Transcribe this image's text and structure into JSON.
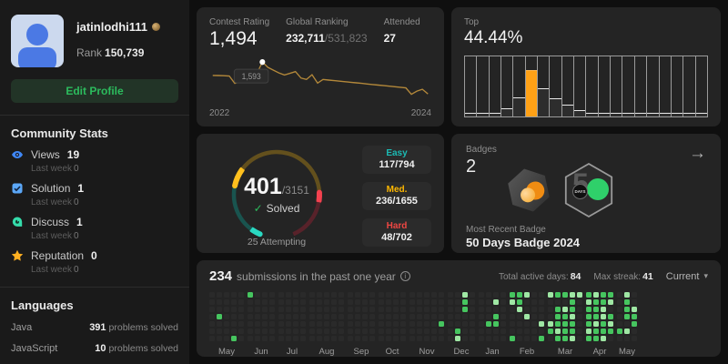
{
  "colors": {
    "accent_green": "#2cbb5d",
    "accent_orange": "#ffa116",
    "line_gold": "#b3883a",
    "easy_teal": "#1cbbb4",
    "medium_yellow": "#ffb800",
    "hard_red": "#ef4743",
    "heat_level1": "#9fe7a4",
    "heat_level2": "#46c55f",
    "heat_empty": "#2a2a2a"
  },
  "icons": {
    "views": "eye-icon",
    "solution": "check-square-icon",
    "discuss": "chat-bubble-icon",
    "reputation": "star-icon",
    "badges_nav": "arrow-right-icon",
    "submissions_info": "info-icon",
    "period_dropdown": "chevron-down-icon",
    "username_badge": "medal-icon"
  },
  "profile": {
    "username": "jatinlodhi111",
    "rank_label": "Rank",
    "rank_value": "150,739",
    "edit_button": "Edit Profile"
  },
  "community_stats": {
    "title": "Community Stats",
    "sub_label": "Last week",
    "items": [
      {
        "label": "Views",
        "value": "19",
        "sub_value": "0",
        "icon": "eye-icon"
      },
      {
        "label": "Solution",
        "value": "1",
        "sub_value": "0",
        "icon": "check-square-icon"
      },
      {
        "label": "Discuss",
        "value": "1",
        "sub_value": "0",
        "icon": "chat-bubble-icon"
      },
      {
        "label": "Reputation",
        "value": "0",
        "sub_value": "0",
        "icon": "star-icon"
      }
    ]
  },
  "languages": {
    "title": "Languages",
    "suffix": "problems solved",
    "items": [
      {
        "name": "Java",
        "count": "391"
      },
      {
        "name": "JavaScript",
        "count": "10"
      }
    ]
  },
  "contest": {
    "rating_label": "Contest Rating",
    "rating_value": "1,494",
    "ranking_label": "Global Ranking",
    "ranking_value": "232,711",
    "ranking_total": "/531,823",
    "attended_label": "Attended",
    "attended_value": "27"
  },
  "top_percent": {
    "label": "Top",
    "value": "44.44%"
  },
  "solved": {
    "count": "401",
    "total": "/3151",
    "solved_label": "Solved",
    "attempting": "25 Attempting",
    "breakdown": [
      {
        "label": "Easy",
        "value": "117/794",
        "color": "#1cbbb4"
      },
      {
        "label": "Med.",
        "value": "236/1655",
        "color": "#ffb800"
      },
      {
        "label": "Hard",
        "value": "48/702",
        "color": "#ef4743"
      }
    ]
  },
  "badges": {
    "label": "Badges",
    "count": "2",
    "hex_number": "5",
    "hex_days": "DAYS",
    "recent_label": "Most Recent Badge",
    "recent_name": "50 Days Badge 2024"
  },
  "submissions": {
    "count": "234",
    "text": "submissions in the past one year",
    "active_label": "Total active days:",
    "active_value": "84",
    "streak_label": "Max streak:",
    "streak_value": "41",
    "dropdown": "Current"
  },
  "chart_data": [
    {
      "type": "line",
      "title": "Contest rating history",
      "xlabel_start": "2022",
      "xlabel_end": "2024",
      "y_range": [
        1340,
        1620
      ],
      "values": [
        1497,
        1496,
        1495,
        1493,
        1440,
        1452,
        1446,
        1470,
        1510,
        1593,
        1555,
        1535,
        1515,
        1500,
        1512,
        1524,
        1478,
        1468,
        1502,
        1442,
        1468,
        1464,
        1460,
        1456,
        1452,
        1448,
        1444,
        1440,
        1436,
        1432,
        1428,
        1424,
        1420,
        1416,
        1412,
        1408,
        1362,
        1385,
        1398,
        1365
      ],
      "peak": {
        "index": 9,
        "value": 1593,
        "label": "1,593"
      },
      "line_color": "#b3883a"
    },
    {
      "type": "bar",
      "title": "Contest rating distribution",
      "values": [
        6,
        6,
        6,
        13,
        32,
        78,
        47,
        30,
        19,
        11,
        6,
        6,
        6,
        6,
        6,
        6,
        6,
        6,
        6,
        6
      ],
      "highlight_index": 5,
      "bar_color": "#2d2d2d",
      "highlight_color": "#ffa116",
      "ylim": [
        0,
        100
      ]
    },
    {
      "type": "heatmap",
      "title": "Submission calendar",
      "rows": 7,
      "level_colors": {
        "0": "#2a2a2a",
        "1": "#9fe7a4",
        "2": "#46c55f"
      },
      "months": [
        {
          "label": "May",
          "weeks": 5,
          "cells": [
            [
              1,
              3,
              2
            ],
            [
              3,
              6,
              2
            ]
          ]
        },
        {
          "label": "Jun",
          "weeks": 4,
          "cells": [
            [
              0,
              0,
              2
            ]
          ]
        },
        {
          "label": "Jul",
          "weeks": 4,
          "cells": []
        },
        {
          "label": "Aug",
          "weeks": 5,
          "cells": []
        },
        {
          "label": "Sep",
          "weeks": 4,
          "cells": []
        },
        {
          "label": "Oct",
          "weeks": 4,
          "cells": []
        },
        {
          "label": "Nov",
          "weeks": 5,
          "cells": [
            [
              4,
              4,
              2
            ]
          ]
        },
        {
          "label": "Dec",
          "weeks": 4,
          "cells": [
            [
              2,
              0,
              1
            ],
            [
              2,
              1,
              2
            ],
            [
              2,
              2,
              2
            ],
            [
              1,
              5,
              2
            ],
            [
              1,
              6,
              1
            ]
          ]
        },
        {
          "label": "Jan",
          "weeks": 4,
          "cells": [
            [
              2,
              1,
              1
            ],
            [
              1,
              4,
              2
            ],
            [
              2,
              3,
              2
            ],
            [
              2,
              4,
              2
            ]
          ]
        },
        {
          "label": "Feb",
          "weeks": 5,
          "cells": [
            [
              0,
              0,
              2
            ],
            [
              1,
              0,
              2
            ],
            [
              2,
              0,
              1
            ],
            [
              0,
              1,
              1
            ],
            [
              1,
              1,
              2
            ],
            [
              1,
              2,
              1
            ],
            [
              2,
              3,
              1
            ],
            [
              0,
              6,
              2
            ],
            [
              4,
              4,
              1
            ],
            [
              4,
              6,
              2
            ]
          ]
        },
        {
          "label": "Mar",
          "weeks": 5,
          "cells": [
            [
              0,
              0,
              1
            ],
            [
              1,
              0,
              2
            ],
            [
              2,
              0,
              2
            ],
            [
              3,
              0,
              1
            ],
            [
              4,
              0,
              1
            ],
            [
              3,
              1,
              2
            ],
            [
              1,
              2,
              2
            ],
            [
              2,
              2,
              1
            ],
            [
              3,
              2,
              2
            ],
            [
              1,
              3,
              2
            ],
            [
              2,
              3,
              2
            ],
            [
              3,
              3,
              1
            ],
            [
              0,
              4,
              1
            ],
            [
              1,
              4,
              2
            ],
            [
              2,
              4,
              2
            ],
            [
              3,
              4,
              2
            ],
            [
              0,
              5,
              2
            ],
            [
              1,
              5,
              1
            ],
            [
              2,
              5,
              2
            ],
            [
              3,
              5,
              2
            ],
            [
              1,
              6,
              2
            ],
            [
              2,
              6,
              2
            ],
            [
              3,
              6,
              1
            ]
          ]
        },
        {
          "label": "Apr",
          "weeks": 4,
          "cells": [
            [
              0,
              0,
              2
            ],
            [
              1,
              0,
              1
            ],
            [
              2,
              0,
              2
            ],
            [
              3,
              0,
              2
            ],
            [
              0,
              1,
              1
            ],
            [
              1,
              1,
              2
            ],
            [
              2,
              1,
              2
            ],
            [
              3,
              1,
              1
            ],
            [
              0,
              2,
              2
            ],
            [
              1,
              2,
              2
            ],
            [
              2,
              2,
              1
            ],
            [
              0,
              3,
              2
            ],
            [
              1,
              3,
              2
            ],
            [
              2,
              3,
              1
            ],
            [
              3,
              3,
              2
            ],
            [
              0,
              4,
              2
            ],
            [
              1,
              4,
              1
            ],
            [
              2,
              4,
              2
            ],
            [
              3,
              4,
              1
            ],
            [
              0,
              5,
              1
            ],
            [
              1,
              5,
              2
            ],
            [
              2,
              5,
              2
            ],
            [
              3,
              5,
              2
            ],
            [
              0,
              6,
              2
            ],
            [
              1,
              6,
              2
            ],
            [
              2,
              6,
              1
            ]
          ]
        },
        {
          "label": "May",
          "weeks": 3,
          "cells": [
            [
              1,
              0,
              1
            ],
            [
              1,
              1,
              2
            ],
            [
              1,
              2,
              2
            ],
            [
              1,
              3,
              2
            ],
            [
              2,
              2,
              1
            ],
            [
              2,
              3,
              2
            ],
            [
              2,
              4,
              2
            ],
            [
              0,
              5,
              2
            ],
            [
              1,
              5,
              1
            ]
          ]
        }
      ]
    },
    {
      "type": "donut",
      "title": "Problems solved",
      "solved": 401,
      "total": 3151,
      "attempting": 25,
      "segments": [
        {
          "name": "Easy",
          "solved": 117,
          "total": 794,
          "bright": "#2ad9c2",
          "dim": "#19544f"
        },
        {
          "name": "Med.",
          "solved": 236,
          "total": 1655,
          "bright": "#ffc01e",
          "dim": "#63501d"
        },
        {
          "name": "Hard",
          "solved": 48,
          "total": 702,
          "bright": "#f3414f",
          "dim": "#58222a"
        }
      ]
    }
  ]
}
